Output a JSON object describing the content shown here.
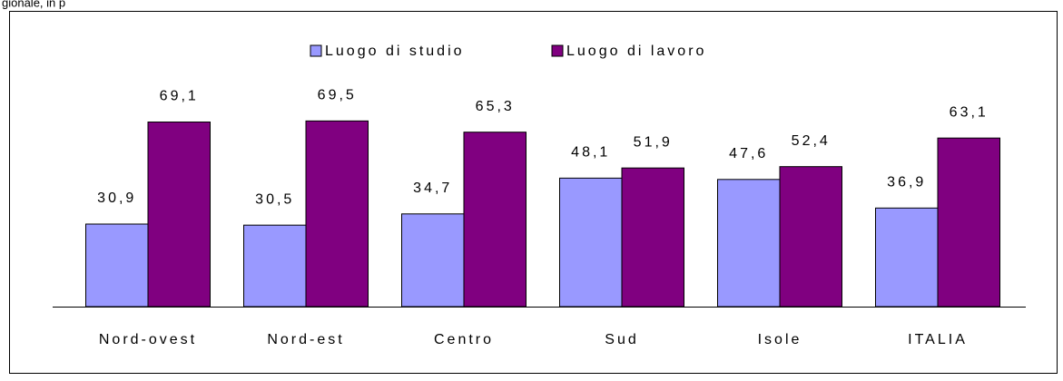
{
  "caption": "gionale, in p",
  "chart_data": {
    "type": "bar",
    "categories": [
      "Nord-ovest",
      "Nord-est",
      "Centro",
      "Sud",
      "Isole",
      "ITALIA"
    ],
    "series": [
      {
        "name": "Luogo di studio",
        "color": "#9999ff",
        "values": [
          30.9,
          30.5,
          34.7,
          48.1,
          47.6,
          36.9
        ],
        "value_labels": [
          "30,9",
          "30,5",
          "34,7",
          "48,1",
          "47,6",
          "36,9"
        ]
      },
      {
        "name": "Luogo di lavoro",
        "color": "#800080",
        "values": [
          69.1,
          69.5,
          65.3,
          51.9,
          52.4,
          63.1
        ],
        "value_labels": [
          "69,1",
          "69,5",
          "65,3",
          "51,9",
          "52,4",
          "63,1"
        ]
      }
    ],
    "ylim": [
      0,
      100
    ],
    "legend": "top"
  }
}
